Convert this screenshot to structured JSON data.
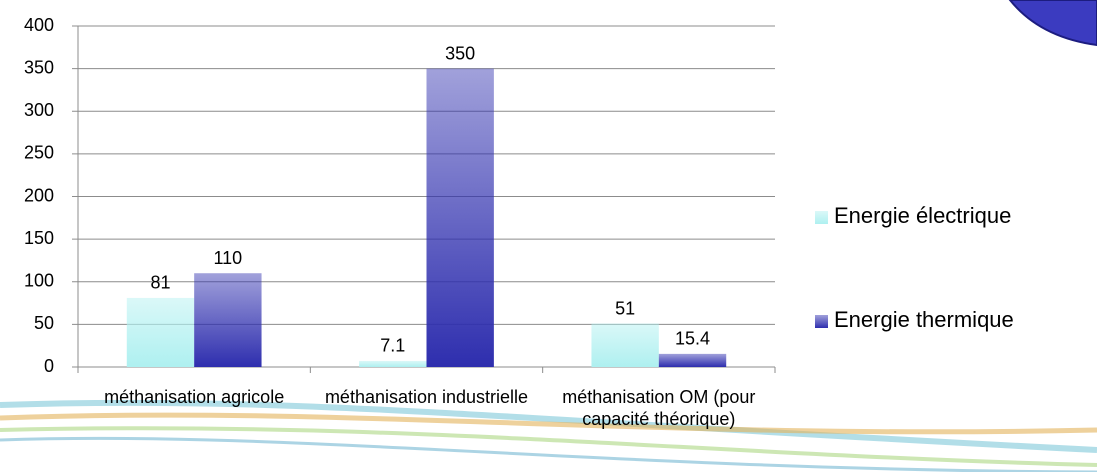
{
  "chart_data": {
    "type": "bar",
    "categories": [
      "méthanisation agricole",
      "méthanisation industrielle",
      "méthanisation OM (pour capacité théorique)"
    ],
    "series": [
      {
        "name": "Energie électrique",
        "color": "#aef0f0",
        "values": [
          81,
          7.1,
          51
        ]
      },
      {
        "name": "Energie thermique",
        "color": "#2e2eae",
        "values": [
          110,
          350,
          15.4
        ]
      }
    ],
    "ylim": [
      0,
      400
    ],
    "yticks": [
      0,
      50,
      100,
      150,
      200,
      250,
      300,
      350,
      400
    ],
    "grid": true,
    "legend": "right"
  }
}
